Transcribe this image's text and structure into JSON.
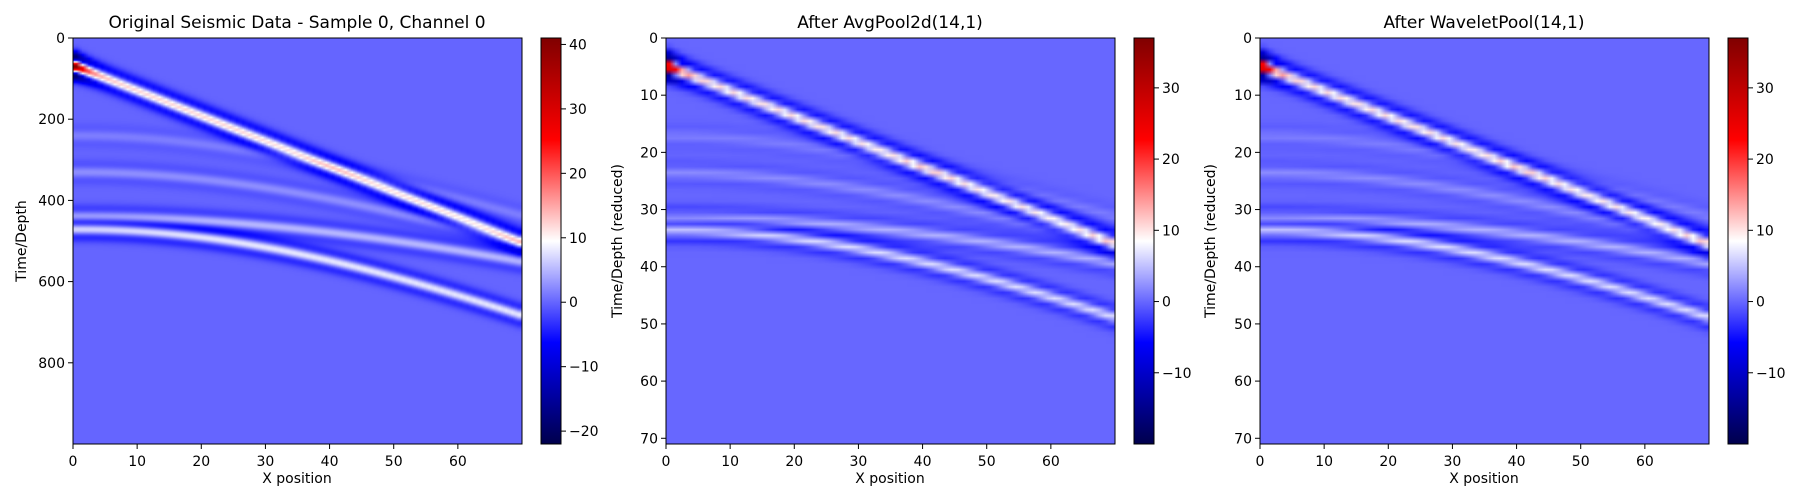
{
  "chart_data": [
    {
      "type": "heatmap",
      "title": "Original Seismic Data - Sample 0, Channel 0",
      "xlabel": "X position",
      "ylabel": "Time/Depth",
      "xlim": [
        0,
        70
      ],
      "ylim": [
        1000,
        0
      ],
      "x_ticks": [
        0,
        10,
        20,
        30,
        40,
        50,
        60
      ],
      "y_ticks": [
        0,
        200,
        400,
        600,
        800
      ],
      "colorbar": {
        "vmin": -22,
        "vmax": 41,
        "ticks": [
          -20,
          -10,
          0,
          10,
          20,
          30,
          40
        ]
      },
      "colormap": "seismic",
      "background_value": 0,
      "grid": false,
      "features": [
        {
          "kind": "direct_wave",
          "t0": 70,
          "t_end": 500,
          "amplitude": 12
        },
        {
          "kind": "reflection",
          "t0": 240,
          "v": 0.19,
          "amplitude": 1.5
        },
        {
          "kind": "reflection",
          "t0": 330,
          "v": 0.18,
          "amplitude": 2.5
        },
        {
          "kind": "reflection",
          "t0": 440,
          "v": 0.21,
          "amplitude": 5
        },
        {
          "kind": "reflection",
          "t0": 470,
          "v": 0.14,
          "amplitude": 8
        }
      ]
    },
    {
      "type": "heatmap",
      "title": "After AvgPool2d(14,1)",
      "xlabel": "X position",
      "ylabel": "Time/Depth (reduced)",
      "xlim": [
        0,
        70
      ],
      "ylim": [
        71,
        0
      ],
      "x_ticks": [
        0,
        10,
        20,
        30,
        40,
        50,
        60
      ],
      "y_ticks": [
        0,
        10,
        20,
        30,
        40,
        50,
        60,
        70
      ],
      "colorbar": {
        "vmin": -20,
        "vmax": 37,
        "ticks": [
          -10,
          0,
          10,
          20,
          30
        ]
      },
      "colormap": "seismic",
      "grid": false
    },
    {
      "type": "heatmap",
      "title": "After WaveletPool(14,1)",
      "xlabel": "X position",
      "ylabel": "Time/Depth (reduced)",
      "xlim": [
        0,
        70
      ],
      "ylim": [
        71,
        0
      ],
      "x_ticks": [
        0,
        10,
        20,
        30,
        40,
        50,
        60
      ],
      "y_ticks": [
        0,
        10,
        20,
        30,
        40,
        50,
        60,
        70
      ],
      "colorbar": {
        "vmin": -20,
        "vmax": 37,
        "ticks": [
          -10,
          0,
          10,
          20,
          30
        ]
      },
      "colormap": "seismic",
      "grid": false
    }
  ]
}
